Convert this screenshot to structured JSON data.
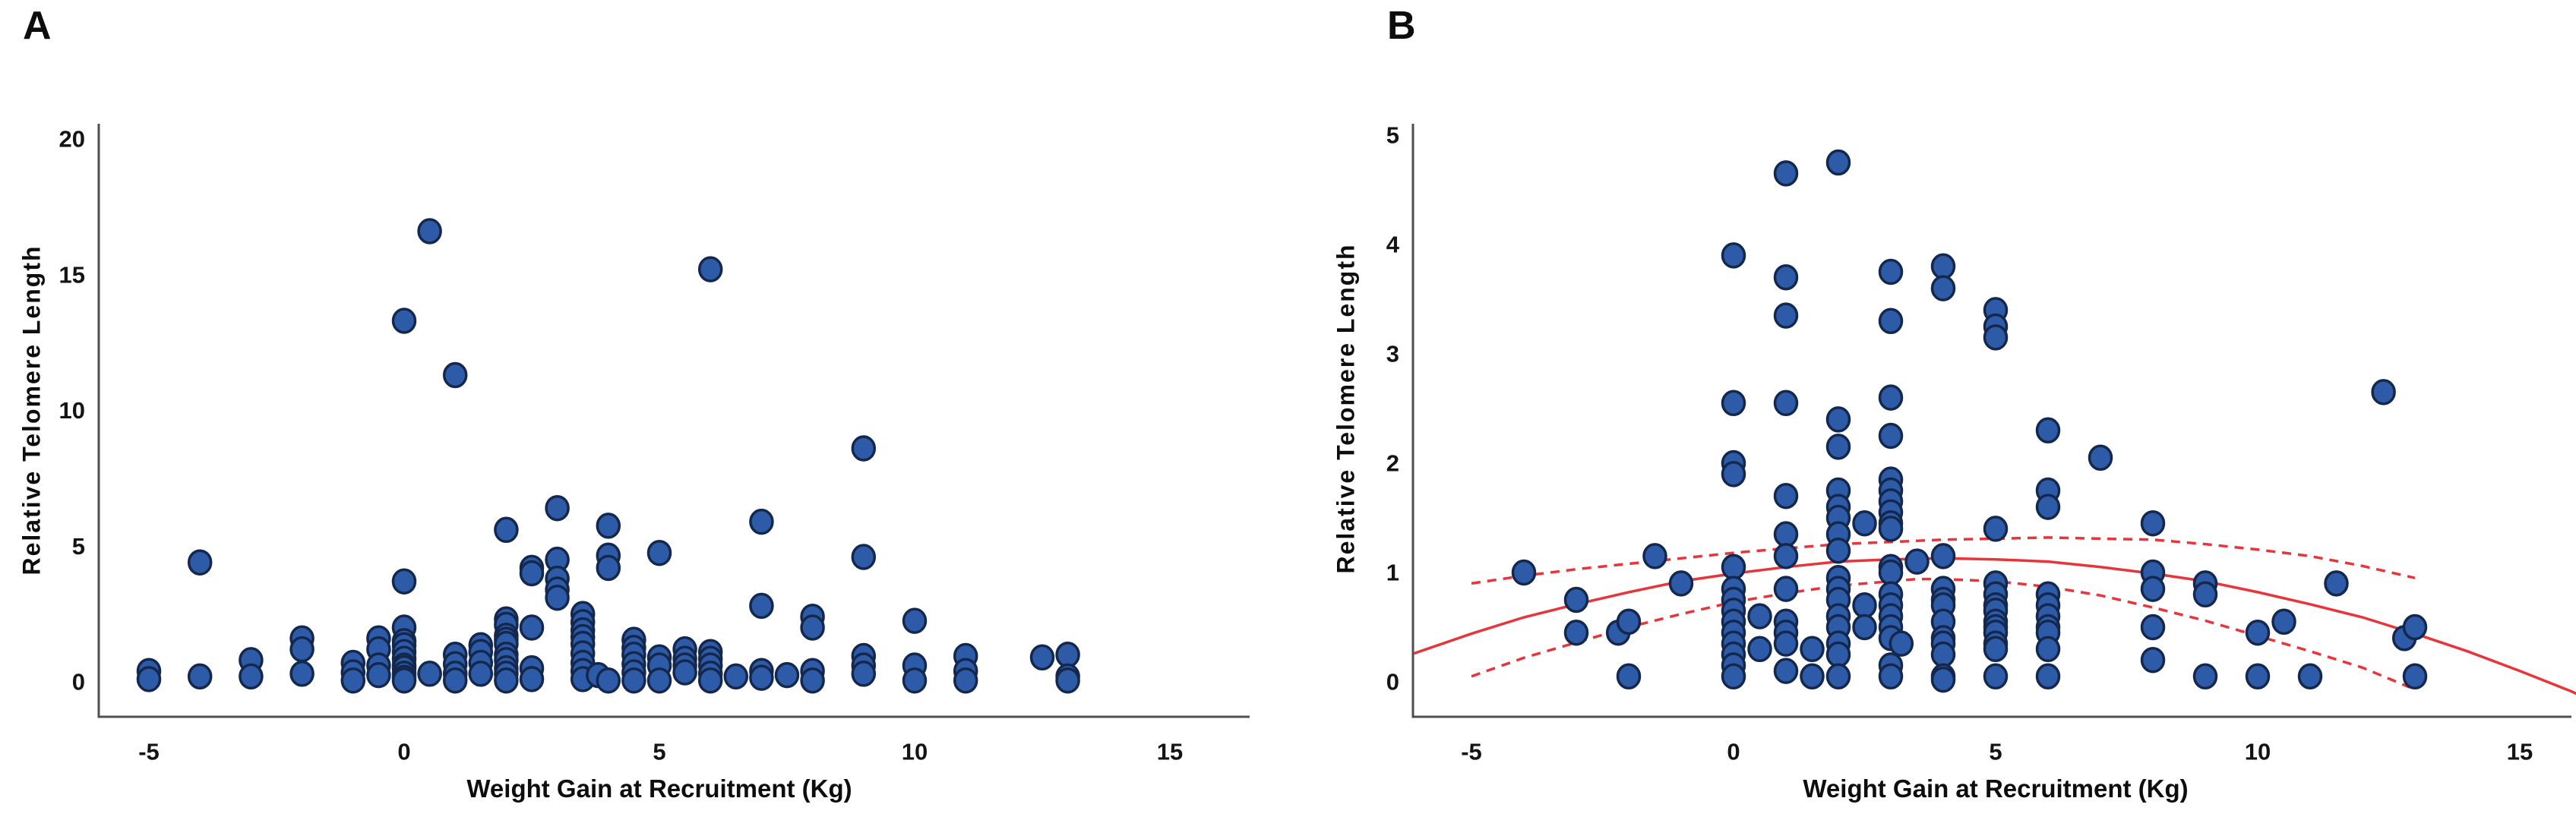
{
  "style": {
    "point_fill": "#2d5ba7",
    "point_stroke": "#14284e",
    "fit_color": "#e8353b",
    "axis_color": "#4f4f4f",
    "text_color": "#141414",
    "background": "#ffffff"
  },
  "chart_data": [
    {
      "id": "A",
      "type": "scatter",
      "title": "A",
      "xlabel": "Weight Gain at Recruitment (Kg)",
      "ylabel": "Relative Telomere Length",
      "x_ticks": [
        -5,
        0,
        5,
        10,
        15
      ],
      "y_ticks": [
        0,
        5,
        10,
        15,
        20
      ],
      "xlim": [
        -6,
        16.6
      ],
      "ylim": [
        -1.3,
        20.6
      ],
      "grid": false,
      "legend": "none",
      "points": [
        [
          -5,
          0.4
        ],
        [
          -5,
          0.1
        ],
        [
          -4,
          4.4
        ],
        [
          -4,
          0.2
        ],
        [
          -3,
          0.8
        ],
        [
          -3,
          0.2
        ],
        [
          -2,
          1.6
        ],
        [
          -2,
          1.2
        ],
        [
          -2,
          0.3
        ],
        [
          -1,
          0.7
        ],
        [
          -1,
          0.35
        ],
        [
          -1,
          0.05
        ],
        [
          -0.5,
          1.6
        ],
        [
          -0.5,
          1.2
        ],
        [
          -0.5,
          0.6
        ],
        [
          -0.5,
          0.25
        ],
        [
          0,
          13.3
        ],
        [
          0,
          3.7
        ],
        [
          0,
          2.0
        ],
        [
          0,
          1.5
        ],
        [
          0,
          1.35
        ],
        [
          0,
          1.1
        ],
        [
          0,
          0.85
        ],
        [
          0,
          0.6
        ],
        [
          0,
          0.5
        ],
        [
          0,
          0.3
        ],
        [
          0,
          0.15
        ],
        [
          0,
          0.05
        ],
        [
          0.5,
          16.6
        ],
        [
          0.5,
          0.3
        ],
        [
          1,
          11.3
        ],
        [
          1,
          1.0
        ],
        [
          1,
          0.65
        ],
        [
          1,
          0.3
        ],
        [
          1,
          0.05
        ],
        [
          1.5,
          1.35
        ],
        [
          1.5,
          1.1
        ],
        [
          1.5,
          0.7
        ],
        [
          1.5,
          0.3
        ],
        [
          2,
          5.6
        ],
        [
          2,
          2.3
        ],
        [
          2,
          2.1
        ],
        [
          2,
          1.7
        ],
        [
          2,
          1.55
        ],
        [
          2,
          1.4
        ],
        [
          2,
          1.0
        ],
        [
          2,
          0.8
        ],
        [
          2,
          0.5
        ],
        [
          2,
          0.3
        ],
        [
          2,
          0.05
        ],
        [
          2.5,
          4.2
        ],
        [
          2.5,
          4.0
        ],
        [
          2.5,
          2.0
        ],
        [
          2.5,
          0.5
        ],
        [
          2.5,
          0.1
        ],
        [
          3,
          6.4
        ],
        [
          3,
          4.5
        ],
        [
          3,
          3.8
        ],
        [
          3,
          3.4
        ],
        [
          3,
          3.1
        ],
        [
          3.5,
          2.5
        ],
        [
          3.5,
          2.2
        ],
        [
          3.5,
          1.9
        ],
        [
          3.5,
          1.65
        ],
        [
          3.5,
          1.4
        ],
        [
          3.5,
          1.05
        ],
        [
          3.5,
          0.7
        ],
        [
          3.5,
          0.4
        ],
        [
          3.5,
          0.1
        ],
        [
          3.8,
          0.25
        ],
        [
          4,
          5.75
        ],
        [
          4,
          4.65
        ],
        [
          4,
          4.2
        ],
        [
          4,
          0.05
        ],
        [
          4.5,
          1.55
        ],
        [
          4.5,
          1.25
        ],
        [
          4.5,
          1.0
        ],
        [
          4.5,
          0.65
        ],
        [
          4.5,
          0.35
        ],
        [
          4.5,
          0.05
        ],
        [
          5,
          4.75
        ],
        [
          5,
          0.9
        ],
        [
          5,
          0.6
        ],
        [
          5,
          0.05
        ],
        [
          5.5,
          1.2
        ],
        [
          5.5,
          0.85
        ],
        [
          5.5,
          0.6
        ],
        [
          5.5,
          0.35
        ],
        [
          6,
          15.2
        ],
        [
          6,
          1.1
        ],
        [
          6,
          0.85
        ],
        [
          6,
          0.6
        ],
        [
          6,
          0.3
        ],
        [
          6,
          0.05
        ],
        [
          6.5,
          0.2
        ],
        [
          7,
          5.9
        ],
        [
          7,
          2.8
        ],
        [
          7,
          0.4
        ],
        [
          7,
          0.15
        ],
        [
          7.5,
          0.25
        ],
        [
          8,
          2.4
        ],
        [
          8,
          2.0
        ],
        [
          8,
          0.4
        ],
        [
          8,
          0.05
        ],
        [
          9,
          8.6
        ],
        [
          9,
          4.6
        ],
        [
          9,
          0.95
        ],
        [
          9,
          0.6
        ],
        [
          9,
          0.3
        ],
        [
          10,
          2.25
        ],
        [
          10,
          0.6
        ],
        [
          10,
          0.05
        ],
        [
          11,
          0.95
        ],
        [
          11,
          0.4
        ],
        [
          11,
          0.05
        ],
        [
          12.5,
          0.9
        ],
        [
          13,
          1.0
        ],
        [
          13,
          0.2
        ],
        [
          13,
          0.05
        ]
      ]
    },
    {
      "id": "B",
      "type": "scatter",
      "title": "B",
      "xlabel": "Weight Gain at Recruitment (Kg)",
      "ylabel": "Relative Telomere Length",
      "x_ticks": [
        -5,
        0,
        5,
        10,
        15
      ],
      "y_ticks": [
        0,
        1,
        2,
        3,
        4,
        5
      ],
      "xlim": [
        -6.1,
        16.0
      ],
      "ylim": [
        -0.32,
        5.1
      ],
      "grid": false,
      "legend": "none",
      "points": [
        [
          -4,
          1.0
        ],
        [
          -3,
          0.75
        ],
        [
          -3,
          0.45
        ],
        [
          -2.2,
          0.45
        ],
        [
          -2,
          0.55
        ],
        [
          -2,
          0.05
        ],
        [
          -1.5,
          1.15
        ],
        [
          -1,
          0.9
        ],
        [
          0,
          3.9
        ],
        [
          0,
          2.55
        ],
        [
          0,
          2.0
        ],
        [
          0,
          1.9
        ],
        [
          0,
          1.05
        ],
        [
          0,
          0.85
        ],
        [
          0,
          0.75
        ],
        [
          0,
          0.65
        ],
        [
          0,
          0.55
        ],
        [
          0,
          0.45
        ],
        [
          0,
          0.35
        ],
        [
          0,
          0.25
        ],
        [
          0,
          0.15
        ],
        [
          0,
          0.05
        ],
        [
          0.5,
          0.6
        ],
        [
          0.5,
          0.3
        ],
        [
          1,
          4.65
        ],
        [
          1,
          3.7
        ],
        [
          1,
          3.35
        ],
        [
          1,
          2.55
        ],
        [
          1,
          1.7
        ],
        [
          1,
          1.35
        ],
        [
          1,
          1.15
        ],
        [
          1,
          0.85
        ],
        [
          1,
          0.55
        ],
        [
          1,
          0.45
        ],
        [
          1,
          0.35
        ],
        [
          1,
          0.1
        ],
        [
          1.5,
          0.3
        ],
        [
          1.5,
          0.05
        ],
        [
          2,
          4.75
        ],
        [
          2,
          2.4
        ],
        [
          2,
          2.15
        ],
        [
          2,
          1.75
        ],
        [
          2,
          1.6
        ],
        [
          2,
          1.5
        ],
        [
          2,
          1.35
        ],
        [
          2,
          1.2
        ],
        [
          2,
          0.95
        ],
        [
          2,
          0.85
        ],
        [
          2,
          0.75
        ],
        [
          2,
          0.6
        ],
        [
          2,
          0.5
        ],
        [
          2,
          0.35
        ],
        [
          2,
          0.25
        ],
        [
          2,
          0.05
        ],
        [
          2.5,
          1.45
        ],
        [
          2.5,
          0.7
        ],
        [
          2.5,
          0.5
        ],
        [
          3,
          3.75
        ],
        [
          3,
          3.3
        ],
        [
          3,
          2.6
        ],
        [
          3,
          2.25
        ],
        [
          3,
          1.85
        ],
        [
          3,
          1.75
        ],
        [
          3,
          1.65
        ],
        [
          3,
          1.55
        ],
        [
          3,
          1.45
        ],
        [
          3,
          1.4
        ],
        [
          3,
          1.05
        ],
        [
          3,
          1.0
        ],
        [
          3,
          0.8
        ],
        [
          3,
          0.7
        ],
        [
          3,
          0.6
        ],
        [
          3,
          0.5
        ],
        [
          3,
          0.4
        ],
        [
          3,
          0.15
        ],
        [
          3,
          0.05
        ],
        [
          3.2,
          0.35
        ],
        [
          3.5,
          1.1
        ],
        [
          4,
          3.8
        ],
        [
          4,
          3.6
        ],
        [
          4,
          1.15
        ],
        [
          4,
          0.85
        ],
        [
          4,
          0.75
        ],
        [
          4,
          0.7
        ],
        [
          4,
          0.55
        ],
        [
          4,
          0.4
        ],
        [
          4,
          0.35
        ],
        [
          4,
          0.25
        ],
        [
          4,
          0.05
        ],
        [
          4,
          0.02
        ],
        [
          5,
          3.4
        ],
        [
          5,
          3.25
        ],
        [
          5,
          3.15
        ],
        [
          5,
          1.4
        ],
        [
          5,
          0.9
        ],
        [
          5,
          0.8
        ],
        [
          5,
          0.7
        ],
        [
          5,
          0.65
        ],
        [
          5,
          0.55
        ],
        [
          5,
          0.5
        ],
        [
          5,
          0.45
        ],
        [
          5,
          0.35
        ],
        [
          5,
          0.3
        ],
        [
          5,
          0.05
        ],
        [
          6,
          2.3
        ],
        [
          6,
          1.75
        ],
        [
          6,
          1.6
        ],
        [
          6,
          0.8
        ],
        [
          6,
          0.7
        ],
        [
          6,
          0.6
        ],
        [
          6,
          0.5
        ],
        [
          6,
          0.45
        ],
        [
          6,
          0.3
        ],
        [
          6,
          0.05
        ],
        [
          7,
          2.05
        ],
        [
          8,
          1.45
        ],
        [
          8,
          1.0
        ],
        [
          8,
          0.85
        ],
        [
          8,
          0.5
        ],
        [
          8,
          0.2
        ],
        [
          9,
          0.9
        ],
        [
          9,
          0.8
        ],
        [
          9,
          0.05
        ],
        [
          10,
          0.45
        ],
        [
          10,
          0.05
        ],
        [
          10.5,
          0.55
        ],
        [
          11,
          0.05
        ],
        [
          11.5,
          0.9
        ],
        [
          12.4,
          2.65
        ],
        [
          12.8,
          0.4
        ],
        [
          13,
          0.5
        ],
        [
          13,
          0.05
        ]
      ],
      "fit_curves": {
        "solid_fit": [
          [
            -6.1,
            0.26
          ],
          [
            -5,
            0.44
          ],
          [
            -4,
            0.59
          ],
          [
            -3,
            0.71
          ],
          [
            -2,
            0.82
          ],
          [
            -1,
            0.92
          ],
          [
            0,
            0.99
          ],
          [
            1,
            1.05
          ],
          [
            2,
            1.1
          ],
          [
            3,
            1.12
          ],
          [
            4,
            1.13
          ],
          [
            5,
            1.12
          ],
          [
            6,
            1.1
          ],
          [
            7,
            1.05
          ],
          [
            8,
            0.99
          ],
          [
            9,
            0.92
          ],
          [
            10,
            0.82
          ],
          [
            11,
            0.71
          ],
          [
            12,
            0.59
          ],
          [
            13,
            0.44
          ],
          [
            14,
            0.28
          ],
          [
            15,
            0.1
          ],
          [
            16,
            -0.09
          ],
          [
            16.3,
            -0.16
          ]
        ],
        "upper_ci": [
          [
            -5,
            0.9
          ],
          [
            -4,
            0.97
          ],
          [
            -3,
            1.03
          ],
          [
            -2,
            1.08
          ],
          [
            -1,
            1.13
          ],
          [
            0,
            1.18
          ],
          [
            1,
            1.22
          ],
          [
            2,
            1.26
          ],
          [
            3,
            1.28
          ],
          [
            4,
            1.3
          ],
          [
            5,
            1.31
          ],
          [
            6,
            1.32
          ],
          [
            7,
            1.31
          ],
          [
            8,
            1.3
          ],
          [
            9,
            1.26
          ],
          [
            10,
            1.21
          ],
          [
            11,
            1.15
          ],
          [
            12,
            1.06
          ],
          [
            13,
            0.95
          ]
        ],
        "lower_ci": [
          [
            -5,
            0.05
          ],
          [
            -4,
            0.22
          ],
          [
            -3,
            0.36
          ],
          [
            -2,
            0.5
          ],
          [
            -1,
            0.62
          ],
          [
            0,
            0.73
          ],
          [
            1,
            0.81
          ],
          [
            2,
            0.88
          ],
          [
            3,
            0.92
          ],
          [
            3.5,
            0.94
          ],
          [
            4,
            0.94
          ],
          [
            5,
            0.92
          ],
          [
            6,
            0.87
          ],
          [
            7,
            0.79
          ],
          [
            8,
            0.68
          ],
          [
            9,
            0.56
          ],
          [
            10,
            0.42
          ],
          [
            11,
            0.28
          ],
          [
            12,
            0.13
          ],
          [
            12.9,
            -0.05
          ]
        ]
      }
    }
  ]
}
